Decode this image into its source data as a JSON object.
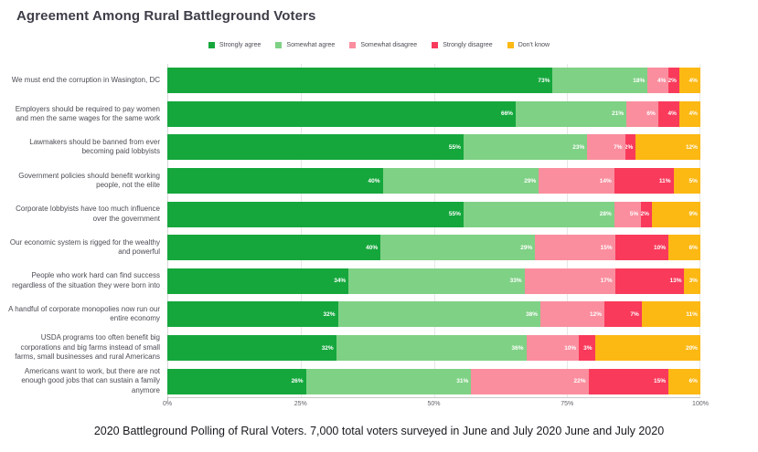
{
  "caption": "2020 Battleground Polling of Rural Voters. 7,000 total voters surveyed in June and July 2020 June and July 2020",
  "chart_data": {
    "type": "bar",
    "orientation": "horizontal",
    "stacked": true,
    "unit": "%",
    "title": "Agreement Among Rural Battleground Voters",
    "xlabel": "",
    "ylabel": "",
    "xlim": [
      0,
      100
    ],
    "x_ticks": [
      "0%",
      "25%",
      "50%",
      "75%",
      "100%"
    ],
    "grid": true,
    "legend_position": "top",
    "value_labels": "inside-right",
    "categories": [
      "We must end the corruption in Wasington, DC",
      "Employers should be required to pay women and men the same wages for the same work",
      "Lawmakers should be banned from ever becoming paid lobbyists",
      "Government policies should benefit working people, not the elite",
      "Corporate lobbyists have too much influence over the government",
      "Our economic system is rigged for the wealthy and powerful",
      "People who work hard can find success regardless of the situation they were born into",
      "A handful of corporate monopolies now run our entire economy",
      "USDA programs too often benefit big corporations and big farms instead of small farms, small businesses and rural Americans",
      "Americans want to work, but there are not enough good jobs that can sustain a family anymore"
    ],
    "series": [
      {
        "name": "Strongly agree",
        "color": "#15a73c",
        "values": [
          73,
          66,
          55,
          40,
          55,
          40,
          34,
          32,
          32,
          26
        ]
      },
      {
        "name": "Somewhat agree",
        "color": "#7fd185",
        "values": [
          18,
          21,
          23,
          29,
          28,
          29,
          33,
          38,
          36,
          31
        ]
      },
      {
        "name": "Somewhat disagree",
        "color": "#fa8e9e",
        "values": [
          4,
          6,
          7,
          14,
          5,
          15,
          17,
          12,
          10,
          22
        ]
      },
      {
        "name": "Strongly disagree",
        "color": "#f93a5b",
        "values": [
          2,
          4,
          2,
          11,
          2,
          10,
          13,
          7,
          3,
          15
        ]
      },
      {
        "name": "Don't know",
        "color": "#fcb813",
        "values": [
          4,
          4,
          12,
          5,
          9,
          6,
          3,
          11,
          20,
          6
        ]
      }
    ]
  }
}
